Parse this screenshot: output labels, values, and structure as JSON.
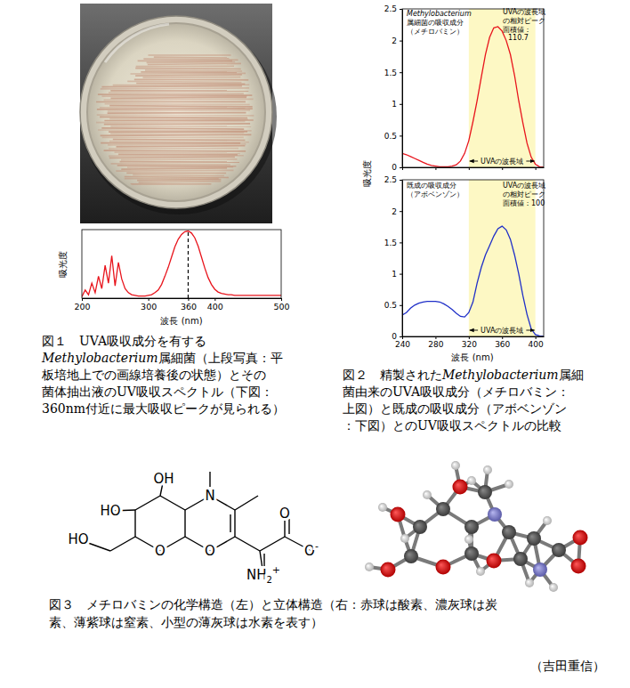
{
  "chart_data": [
    {
      "type": "line",
      "x": [
        200,
        205,
        210,
        215,
        220,
        225,
        230,
        235,
        240,
        245,
        250,
        255,
        260,
        265,
        270,
        275,
        280,
        285,
        290,
        295,
        300,
        305,
        310,
        315,
        320,
        325,
        330,
        335,
        340,
        345,
        350,
        355,
        360,
        365,
        370,
        375,
        380,
        385,
        390,
        395,
        400,
        405,
        410,
        415,
        420,
        425,
        430,
        435,
        440,
        445,
        450,
        455,
        460,
        465,
        470,
        475,
        480,
        485,
        490,
        495,
        500
      ],
      "values": [
        0.02,
        0.12,
        0.05,
        0.22,
        0.08,
        0.32,
        0.14,
        0.48,
        0.22,
        0.62,
        0.18,
        0.52,
        0.28,
        0.14,
        0.08,
        0.05,
        0.04,
        0.03,
        0.03,
        0.03,
        0.04,
        0.05,
        0.08,
        0.12,
        0.2,
        0.32,
        0.45,
        0.6,
        0.75,
        0.86,
        0.93,
        0.97,
        0.98,
        0.95,
        0.88,
        0.76,
        0.6,
        0.44,
        0.3,
        0.2,
        0.13,
        0.09,
        0.07,
        0.06,
        0.05,
        0.05,
        0.04,
        0.04,
        0.04,
        0.04,
        0.04,
        0.04,
        0.04,
        0.04,
        0.04,
        0.04,
        0.04,
        0.04,
        0.04,
        0.04,
        0.04
      ],
      "color": "#e8141c",
      "xlim": [
        200,
        500
      ],
      "xticks": [
        200,
        300,
        360,
        400,
        500
      ],
      "ylim": [
        0,
        1
      ],
      "tick_labels": "x",
      "peak_line": 360,
      "x_label": "波長 (nm)",
      "y_label": "吸光度"
    },
    {
      "type": "line",
      "x": [
        240,
        245,
        250,
        255,
        260,
        265,
        270,
        275,
        280,
        285,
        290,
        295,
        300,
        305,
        310,
        315,
        320,
        325,
        330,
        335,
        340,
        345,
        350,
        355,
        360,
        365,
        370,
        375,
        380,
        385,
        390,
        395,
        400,
        405,
        410
      ],
      "values": [
        0.22,
        0.2,
        0.17,
        0.14,
        0.11,
        0.08,
        0.05,
        0.03,
        0.02,
        0.01,
        0.01,
        0.01,
        0.02,
        0.04,
        0.1,
        0.22,
        0.42,
        0.72,
        1.05,
        1.42,
        1.78,
        2.05,
        2.2,
        2.22,
        2.15,
        2.0,
        1.78,
        1.45,
        1.05,
        0.7,
        0.38,
        0.16,
        0.05,
        0.01,
        0
      ],
      "color": "#e8141c",
      "xlim": [
        240,
        410
      ],
      "xticks": [
        240,
        280,
        320,
        360,
        400
      ],
      "ylim": [
        0,
        2.5
      ],
      "yticks": [
        0,
        0.5,
        1,
        1.5,
        2,
        2.5
      ],
      "tick_labels": "y",
      "band": [
        320,
        400
      ],
      "band_label": "UVAの波長域",
      "annotations": [
        {
          "lines": [
            {
              "text": "Methylobacterium",
              "italic": true
            },
            {
              "text": "属細菌の吸収成分"
            },
            {
              "text": "（メチロバミン）"
            }
          ]
        },
        {
          "lines": [
            {
              "text": "UVAの波長域"
            },
            {
              "text": "の相対ピーク"
            },
            {
              "text": "面積値："
            },
            {
              "text": "110.7"
            }
          ]
        }
      ]
    },
    {
      "type": "line",
      "x": [
        240,
        245,
        250,
        255,
        260,
        265,
        270,
        275,
        280,
        285,
        290,
        295,
        300,
        305,
        310,
        315,
        320,
        325,
        330,
        335,
        340,
        345,
        350,
        355,
        360,
        365,
        370,
        375,
        380,
        385,
        390,
        395,
        400,
        405,
        410
      ],
      "values": [
        0.34,
        0.38,
        0.45,
        0.5,
        0.53,
        0.55,
        0.56,
        0.56,
        0.56,
        0.55,
        0.52,
        0.48,
        0.43,
        0.37,
        0.32,
        0.31,
        0.38,
        0.55,
        0.85,
        1.1,
        1.3,
        1.45,
        1.6,
        1.72,
        1.76,
        1.7,
        1.55,
        1.3,
        1.0,
        0.65,
        0.35,
        0.12,
        0.03,
        0.01,
        0
      ],
      "color": "#1f2fc8",
      "xlim": [
        240,
        410
      ],
      "xticks": [
        240,
        280,
        320,
        360,
        400
      ],
      "ylim": [
        0,
        2.5
      ],
      "yticks": [
        0,
        0.5,
        1,
        1.5,
        2,
        2.5
      ],
      "band": [
        320,
        400
      ],
      "band_label": "UVAの波長域",
      "annotations": [
        {
          "lines": [
            {
              "text": "既成の吸収成分"
            },
            {
              "text": "（アボベンゾン）"
            }
          ]
        },
        {
          "lines": [
            {
              "text": "UVAの波長域"
            },
            {
              "text": "の相対ピーク"
            },
            {
              "text": "面積値：100"
            }
          ]
        }
      ],
      "x_label": "波長 (nm)",
      "y_label": "吸光度"
    }
  ],
  "figure1": {
    "caption": [
      [
        {
          "text": "図１　UVA吸収成分を有する"
        }
      ],
      [
        {
          "text": "Methylobacterium",
          "italic": true
        },
        {
          "text": "属細菌（上段写真：平"
        }
      ],
      [
        {
          "text": "板培地上での画線培養後の状態）とその"
        }
      ],
      [
        {
          "text": "菌体抽出液のUV吸収スペクトル（下図："
        }
      ],
      [
        {
          "text": "360nm付近に最大吸収ピークが見られる）"
        }
      ]
    ]
  },
  "figure2": {
    "caption": [
      [
        {
          "text": "図２　精製された"
        },
        {
          "text": "Methylobacterium",
          "italic": true
        },
        {
          "text": "属細"
        }
      ],
      [
        {
          "text": "菌由来のUVA吸収成分（メチロバミン："
        }
      ],
      [
        {
          "text": "上図）と既成の吸収成分（アボベンゾン"
        }
      ],
      [
        {
          "text": "：下図）とのUV吸収スペクトルの比較"
        }
      ]
    ]
  },
  "figure3": {
    "structure_labels": [
      {
        "text": "OH"
      },
      {
        "text": "HO"
      },
      {
        "text": "HO"
      },
      {
        "text": "N"
      },
      {
        "text": "O"
      },
      {
        "text": "O"
      },
      {
        "text": "O"
      },
      {
        "text": "O",
        "sup": "-"
      },
      {
        "text": "NH",
        "sub": "2",
        "sup": "+"
      }
    ],
    "caption": [
      [
        {
          "text": "図３　メチロバミンの化学構造（左）と立体構造（右：赤球は酸素、濃灰球は炭"
        }
      ],
      [
        {
          "text": "素、薄紫球は窒素、小型の薄灰球は水素を表す）"
        }
      ]
    ]
  },
  "author": "（吉田重信）"
}
